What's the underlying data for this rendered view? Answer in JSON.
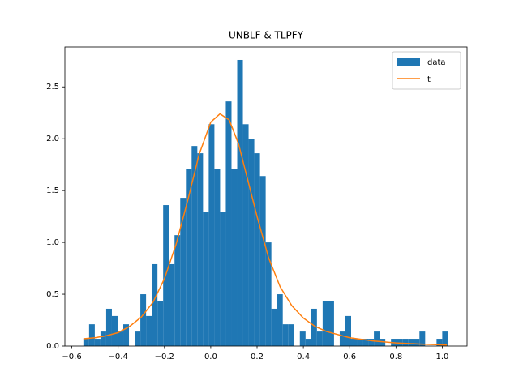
{
  "chart_data": {
    "type": "histogram",
    "title": "UNBLF & TLPFY",
    "name": "data",
    "color": "#1f77b4",
    "bins": [
      -0.55,
      -0.5254,
      -0.5008,
      -0.4762,
      -0.4516,
      -0.427,
      -0.4024,
      -0.3778,
      -0.3532,
      -0.3286,
      -0.304,
      -0.2794,
      -0.2548,
      -0.2302,
      -0.2056,
      -0.181,
      -0.1564,
      -0.1318,
      -0.1072,
      -0.0826,
      -0.058,
      -0.0334,
      -0.0088,
      0.0158,
      0.0404,
      0.065,
      0.0896,
      0.1142,
      0.1388,
      0.1634,
      0.188,
      0.2126,
      0.2372,
      0.2618,
      0.2864,
      0.311,
      0.3356,
      0.3602,
      0.3848,
      0.4094,
      0.434,
      0.4586,
      0.4832,
      0.5078,
      0.5324,
      0.557,
      0.5816,
      0.6062,
      0.6308,
      0.6554,
      0.68,
      0.7046,
      0.7292,
      0.7538,
      0.7784,
      0.803,
      0.8276,
      0.8522,
      0.8768,
      0.9014,
      0.926,
      0.9506,
      0.9752,
      0.9998,
      1.0244
    ],
    "values": [
      0.07,
      0.21,
      0.07,
      0.14,
      0.36,
      0.29,
      0.14,
      0.21,
      0,
      0.14,
      0.5,
      0.29,
      0.79,
      0.43,
      1.36,
      0.79,
      1.07,
      1.43,
      1.71,
      1.93,
      1.86,
      1.29,
      2.14,
      1.71,
      1.29,
      2.36,
      1.71,
      2.76,
      2.14,
      2.0,
      1.86,
      1.64,
      1.0,
      0.36,
      0.5,
      0.21,
      0.21,
      0,
      0.14,
      0.07,
      0.36,
      0.14,
      0.43,
      0.43,
      0,
      0.14,
      0.29,
      0.07,
      0.07,
      0.07,
      0.07,
      0.14,
      0.07,
      0,
      0.07,
      0.07,
      0.07,
      0.07,
      0.07,
      0.14,
      0,
      0,
      0.07,
      0.14
    ],
    "line": {
      "type": "line",
      "name": "t",
      "color": "#ff7f0e",
      "x": [
        -0.55,
        -0.5,
        -0.45,
        -0.4,
        -0.35,
        -0.3,
        -0.25,
        -0.2,
        -0.15,
        -0.1,
        -0.05,
        0,
        0.04,
        0.08,
        0.12,
        0.16,
        0.2,
        0.25,
        0.3,
        0.35,
        0.4,
        0.45,
        0.5,
        0.6,
        0.7,
        0.8,
        0.9,
        1.02
      ],
      "values": [
        0.07,
        0.08,
        0.1,
        0.13,
        0.19,
        0.28,
        0.42,
        0.65,
        0.98,
        1.4,
        1.85,
        2.16,
        2.24,
        2.18,
        1.95,
        1.6,
        1.25,
        0.85,
        0.57,
        0.39,
        0.27,
        0.19,
        0.14,
        0.08,
        0.05,
        0.03,
        0.02,
        0.01
      ]
    },
    "xlim": [
      -0.63,
      1.107
    ],
    "ylim": [
      0,
      2.885
    ],
    "xticks": [
      {
        "value": -0.6,
        "label": "−0.6"
      },
      {
        "value": -0.4,
        "label": "−0.4"
      },
      {
        "value": -0.2,
        "label": "−0.2"
      },
      {
        "value": 0,
        "label": "0.0"
      },
      0.2,
      0.4,
      0.6,
      0.8,
      {
        "value": 1,
        "label": "1.0"
      }
    ],
    "yticks": [
      {
        "value": 0,
        "label": "0.0"
      },
      0.5,
      {
        "value": 1,
        "label": "1.0"
      },
      1.5,
      {
        "value": 2,
        "label": "2.0"
      },
      2.5
    ],
    "legend": "upper right"
  }
}
